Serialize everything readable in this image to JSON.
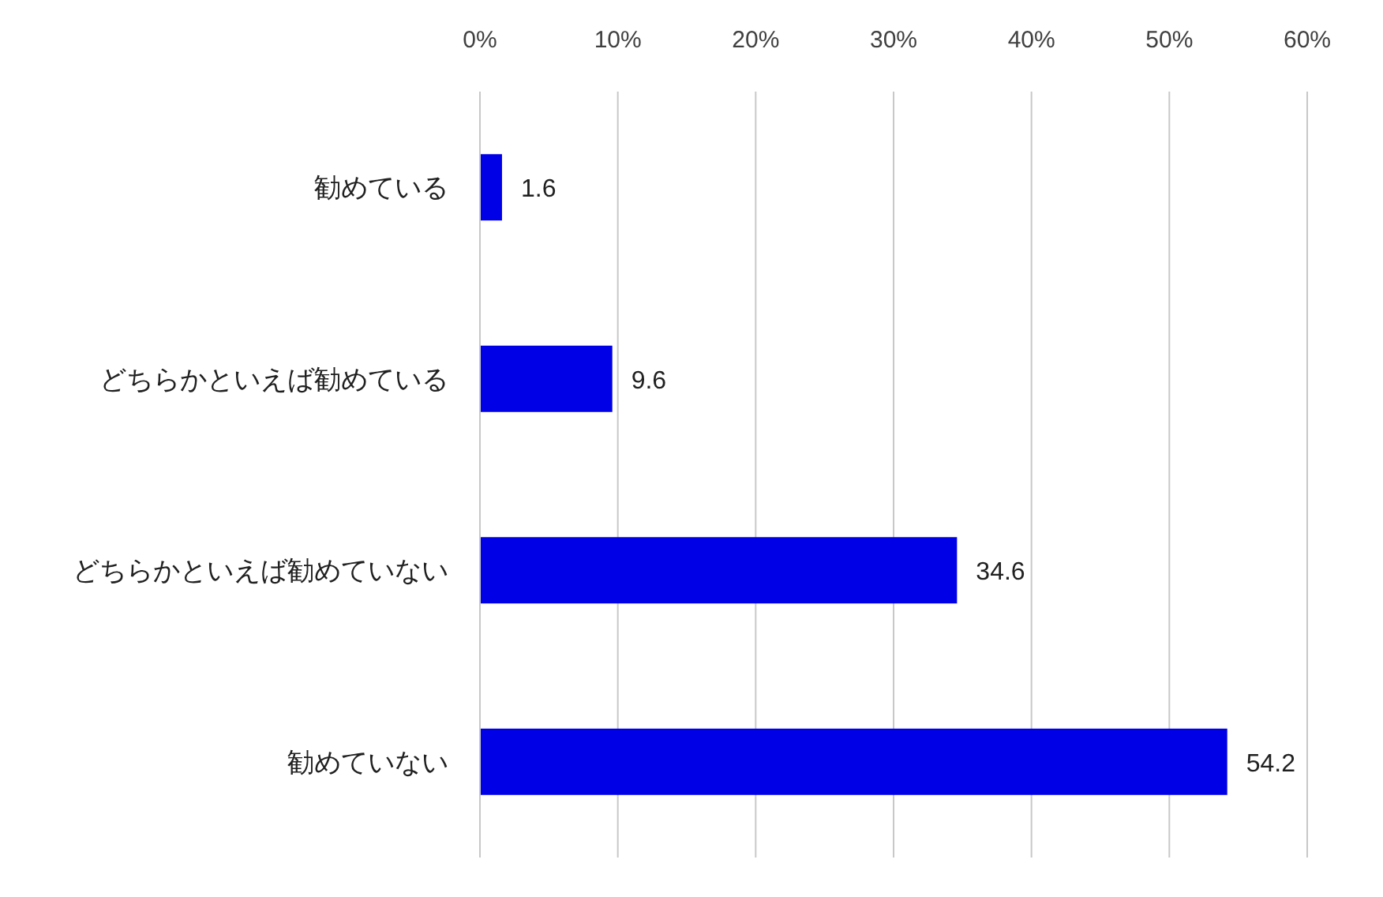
{
  "chart_data": {
    "type": "bar",
    "orientation": "horizontal",
    "categories": [
      "勧めている",
      "どちらかといえば勧めている",
      "どちらかといえば勧めていない",
      "勧めていない"
    ],
    "values": [
      1.6,
      9.6,
      34.6,
      54.2
    ],
    "color": "#0000e6",
    "xlim": [
      0,
      60
    ],
    "xticks": [
      {
        "value": 0,
        "label": "0%"
      },
      {
        "value": 10,
        "label": "10%"
      },
      {
        "value": 20,
        "label": "20%"
      },
      {
        "value": 30,
        "label": "30%"
      },
      {
        "value": 40,
        "label": "40%"
      },
      {
        "value": 50,
        "label": "50%"
      },
      {
        "value": 60,
        "label": "60%"
      }
    ],
    "grid": "x",
    "data_labels": true
  }
}
